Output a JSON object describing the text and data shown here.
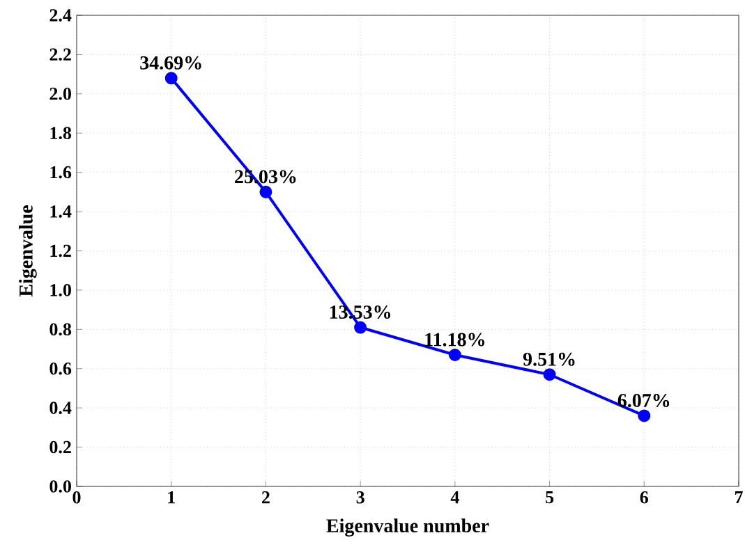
{
  "chart_data": {
    "type": "line",
    "xlabel": "Eigenvalue number",
    "ylabel": "Eigenvalue",
    "x": [
      1,
      2,
      3,
      4,
      5,
      6
    ],
    "series": [
      {
        "color": "#0000ff",
        "values": [
          2.08,
          1.5,
          0.81,
          0.67,
          0.57,
          0.36
        ]
      }
    ],
    "annotations": [
      {
        "text": "34.69%",
        "x": 1,
        "y": 2.08
      },
      {
        "text": "25.03%",
        "x": 2,
        "y": 1.5
      },
      {
        "text": "13.53%",
        "x": 3,
        "y": 0.81
      },
      {
        "text": "11.18%",
        "x": 4,
        "y": 0.67
      },
      {
        "text": "9.51%",
        "x": 5,
        "y": 0.57
      },
      {
        "text": "6.07%",
        "x": 6,
        "y": 0.36
      }
    ],
    "xlim": [
      0,
      7
    ],
    "xticks": [
      0,
      1,
      2,
      3,
      4,
      5,
      6,
      7
    ],
    "ylim": [
      0,
      2.4
    ],
    "yticks": [
      {
        "value": 0,
        "label": "0.0"
      },
      0.2,
      0.4,
      0.6,
      0.8,
      {
        "value": 1,
        "label": "1.0"
      },
      1.2,
      1.4,
      1.6,
      1.8,
      {
        "value": 2,
        "label": "2.0"
      },
      2.2,
      2.4
    ],
    "grid": true,
    "marker": "circle",
    "line_style": "solid"
  }
}
